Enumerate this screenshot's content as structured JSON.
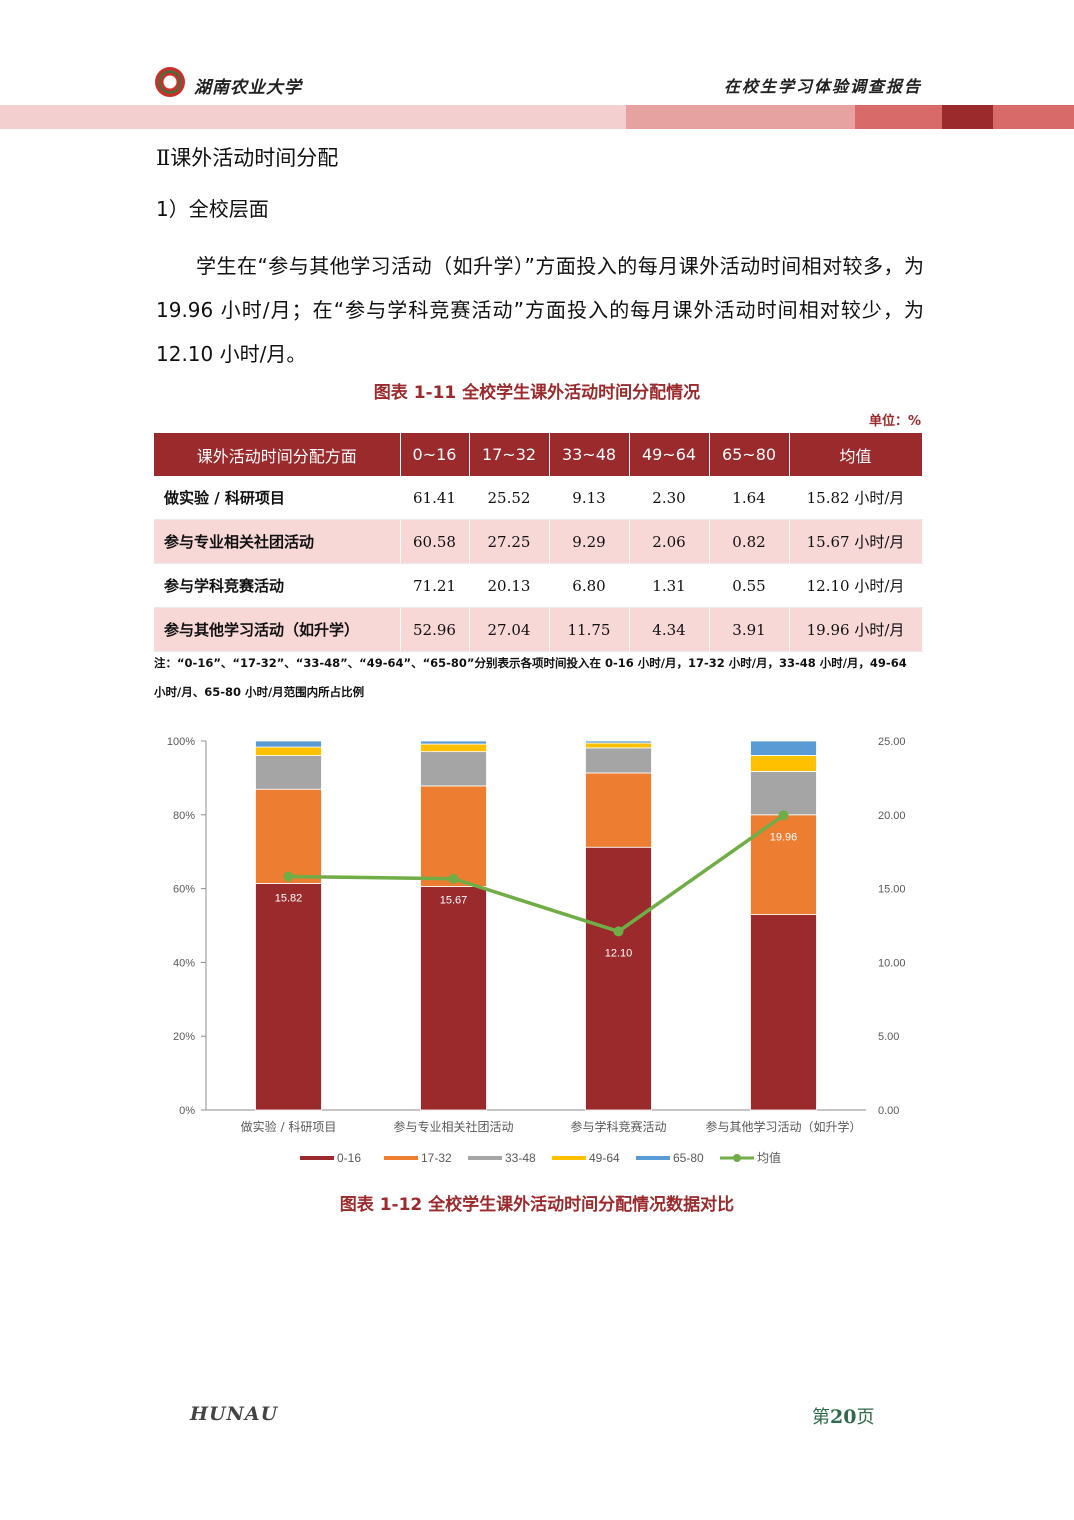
{
  "header": {
    "university": "湖南农业大学",
    "report_title": "在校生学习体验调查报告",
    "band_colors": [
      "#f3cfcf",
      "#e6a1a1",
      "#d86a6a",
      "#9b2a2c",
      "#d86a6a"
    ]
  },
  "section_title": "Ⅱ课外活动时间分配",
  "subsection_title": "1）全校层面",
  "paragraph": "学生在“参与其他学习活动（如升学）”方面投入的每月课外活动时间相对较多，为 19.96 小时/月；在“参与学科竞赛活动”方面投入的每月课外活动时间相对较少，为 12.10 小时/月。",
  "table_caption": "图表 1-11 全校学生课外活动时间分配情况",
  "unit_label": "单位：%",
  "table": {
    "headers": [
      "课外活动时间分配方面",
      "0~16",
      "17~32",
      "33~48",
      "49~64",
      "65~80",
      "均值"
    ],
    "rows": [
      [
        "做实验 / 科研项目",
        "61.41",
        "25.52",
        "9.13",
        "2.30",
        "1.64",
        "15.82 小时/月"
      ],
      [
        "参与专业相关社团活动",
        "60.58",
        "27.25",
        "9.29",
        "2.06",
        "0.82",
        "15.67 小时/月"
      ],
      [
        "参与学科竞赛活动",
        "71.21",
        "20.13",
        "6.80",
        "1.31",
        "0.55",
        "12.10 小时/月"
      ],
      [
        "参与其他学习活动（如升学）",
        "52.96",
        "27.04",
        "11.75",
        "4.34",
        "3.91",
        "19.96 小时/月"
      ]
    ]
  },
  "note": "注：“0-16”、“17-32”、“33-48”、“49-64”、“65-80”分别表示各项时间投入在 0-16 小时/月，17-32 小时/月，33-48 小时/月，49-64 小时/月、65-80 小时/月范围内所占比例",
  "chart_data": {
    "type": "bar",
    "stacked": true,
    "categories": [
      "做实验 / 科研项目",
      "参与专业相关社团活动",
      "参与学科竞赛活动",
      "参与其他学习活动（如升学）"
    ],
    "series": [
      {
        "name": "0-16",
        "values": [
          61.41,
          60.58,
          71.21,
          52.96
        ],
        "color": "#9b2a2c",
        "axis": "left"
      },
      {
        "name": "17-32",
        "values": [
          25.52,
          27.25,
          20.13,
          27.04
        ],
        "color": "#ed7d31",
        "axis": "left"
      },
      {
        "name": "33-48",
        "values": [
          9.13,
          9.29,
          6.8,
          11.75
        ],
        "color": "#a5a5a5",
        "axis": "left"
      },
      {
        "name": "49-64",
        "values": [
          2.3,
          2.06,
          1.31,
          4.34
        ],
        "color": "#ffc000",
        "axis": "left"
      },
      {
        "name": "65-80",
        "values": [
          1.64,
          0.82,
          0.55,
          3.91
        ],
        "color": "#5b9bd5",
        "axis": "left"
      },
      {
        "name": "均值",
        "type": "line",
        "values": [
          15.82,
          15.67,
          12.1,
          19.96
        ],
        "labels": [
          "15.82",
          "15.67",
          "12.10",
          "19.96"
        ],
        "color": "#70ad47",
        "axis": "right"
      }
    ],
    "y_left": {
      "ticks": [
        "0%",
        "20%",
        "40%",
        "60%",
        "80%",
        "100%"
      ],
      "lim": [
        0,
        100
      ]
    },
    "y_right": {
      "ticks": [
        "0.00",
        "5.00",
        "10.00",
        "15.00",
        "20.00",
        "25.00"
      ],
      "lim": [
        0,
        25
      ]
    },
    "legend_position": "bottom"
  },
  "chart_caption": "图表 1-12 全校学生课外活动时间分配情况数据对比",
  "footer": {
    "logo_text": "HUNAU",
    "page_prefix": "第",
    "page_number": "20",
    "page_suffix": "页"
  }
}
